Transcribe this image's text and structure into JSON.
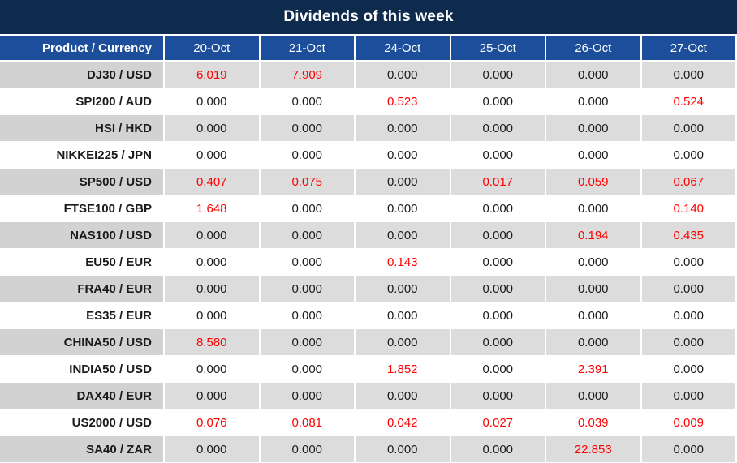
{
  "title": "Dividends of this week",
  "colors": {
    "title_bg": "#0e2a4d",
    "header_bg": "#1d4e9b",
    "alt_row_label_bg": "#d2d2d3",
    "alt_row_value_bg": "#dcdcdc",
    "row_bg": "#ffffff",
    "highlight_value": "#ff0000",
    "text": "#1a1a1a",
    "header_text": "#ffffff"
  },
  "table": {
    "product_header": "Product / Currency",
    "date_headers": [
      "20-Oct",
      "21-Oct",
      "24-Oct",
      "25-Oct",
      "26-Oct",
      "27-Oct"
    ],
    "zero_value": "0.000",
    "rows": [
      {
        "product": "DJ30 / USD",
        "values": [
          "6.019",
          "7.909",
          "0.000",
          "0.000",
          "0.000",
          "0.000"
        ]
      },
      {
        "product": "SPI200 / AUD",
        "values": [
          "0.000",
          "0.000",
          "0.523",
          "0.000",
          "0.000",
          "0.524"
        ]
      },
      {
        "product": "HSI / HKD",
        "values": [
          "0.000",
          "0.000",
          "0.000",
          "0.000",
          "0.000",
          "0.000"
        ]
      },
      {
        "product": "NIKKEI225 / JPN",
        "values": [
          "0.000",
          "0.000",
          "0.000",
          "0.000",
          "0.000",
          "0.000"
        ]
      },
      {
        "product": "SP500 / USD",
        "values": [
          "0.407",
          "0.075",
          "0.000",
          "0.017",
          "0.059",
          "0.067"
        ]
      },
      {
        "product": "FTSE100 / GBP",
        "values": [
          "1.648",
          "0.000",
          "0.000",
          "0.000",
          "0.000",
          "0.140"
        ]
      },
      {
        "product": "NAS100 / USD",
        "values": [
          "0.000",
          "0.000",
          "0.000",
          "0.000",
          "0.194",
          "0.435"
        ]
      },
      {
        "product": "EU50 / EUR",
        "values": [
          "0.000",
          "0.000",
          "0.143",
          "0.000",
          "0.000",
          "0.000"
        ]
      },
      {
        "product": "FRA40 / EUR",
        "values": [
          "0.000",
          "0.000",
          "0.000",
          "0.000",
          "0.000",
          "0.000"
        ]
      },
      {
        "product": "ES35 / EUR",
        "values": [
          "0.000",
          "0.000",
          "0.000",
          "0.000",
          "0.000",
          "0.000"
        ]
      },
      {
        "product": "CHINA50 / USD",
        "values": [
          "8.580",
          "0.000",
          "0.000",
          "0.000",
          "0.000",
          "0.000"
        ]
      },
      {
        "product": "INDIA50 / USD",
        "values": [
          "0.000",
          "0.000",
          "1.852",
          "0.000",
          "2.391",
          "0.000"
        ]
      },
      {
        "product": "DAX40 / EUR",
        "values": [
          "0.000",
          "0.000",
          "0.000",
          "0.000",
          "0.000",
          "0.000"
        ]
      },
      {
        "product": "US2000 / USD",
        "values": [
          "0.076",
          "0.081",
          "0.042",
          "0.027",
          "0.039",
          "0.009"
        ]
      },
      {
        "product": "SA40 / ZAR",
        "values": [
          "0.000",
          "0.000",
          "0.000",
          "0.000",
          "22.853",
          "0.000"
        ]
      }
    ]
  }
}
